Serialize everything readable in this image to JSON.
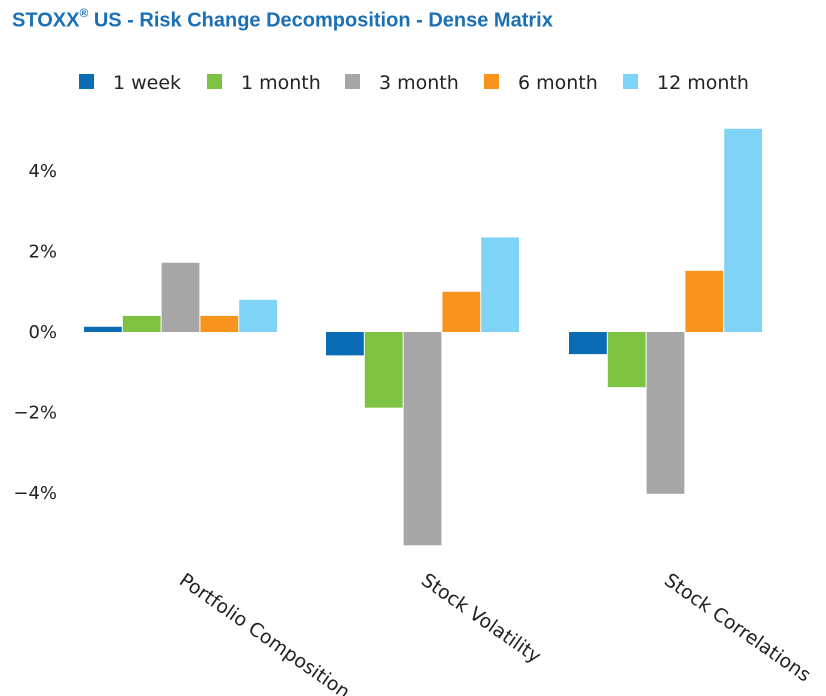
{
  "title": {
    "prefix": "STOXX",
    "registered": "®",
    "suffix": " US - Risk Change Decomposition - Dense Matrix"
  },
  "chart_data": {
    "type": "bar",
    "title": "STOXX® US - Risk Change Decomposition - Dense Matrix",
    "categories": [
      "Portfolio Composition",
      "Stock Volatility",
      "Stock Correlations"
    ],
    "series": [
      {
        "name": "1 week",
        "color": "#0a6cb4",
        "values": [
          0.13,
          -0.58,
          -0.55
        ]
      },
      {
        "name": "1 month",
        "color": "#7dc241",
        "values": [
          0.4,
          -1.88,
          -1.37
        ]
      },
      {
        "name": "3 month",
        "color": "#a6a6a6",
        "values": [
          1.72,
          -5.3,
          -4.02
        ]
      },
      {
        "name": "6 month",
        "color": "#f7941d",
        "values": [
          0.4,
          1.0,
          1.52
        ]
      },
      {
        "name": "12 month",
        "color": "#7fd3f7",
        "values": [
          0.8,
          2.35,
          5.05
        ]
      }
    ],
    "yticks": [
      {
        "value": 4,
        "label": "4%"
      },
      {
        "value": 2,
        "label": "2%"
      },
      {
        "value": 0,
        "label": "0%"
      },
      {
        "value": -2,
        "label": "−2%"
      },
      {
        "value": -4,
        "label": "−4%"
      }
    ],
    "ylim": [
      -6,
      6
    ],
    "xlabel": "",
    "ylabel": "",
    "grid": false,
    "legend_position": "top"
  }
}
